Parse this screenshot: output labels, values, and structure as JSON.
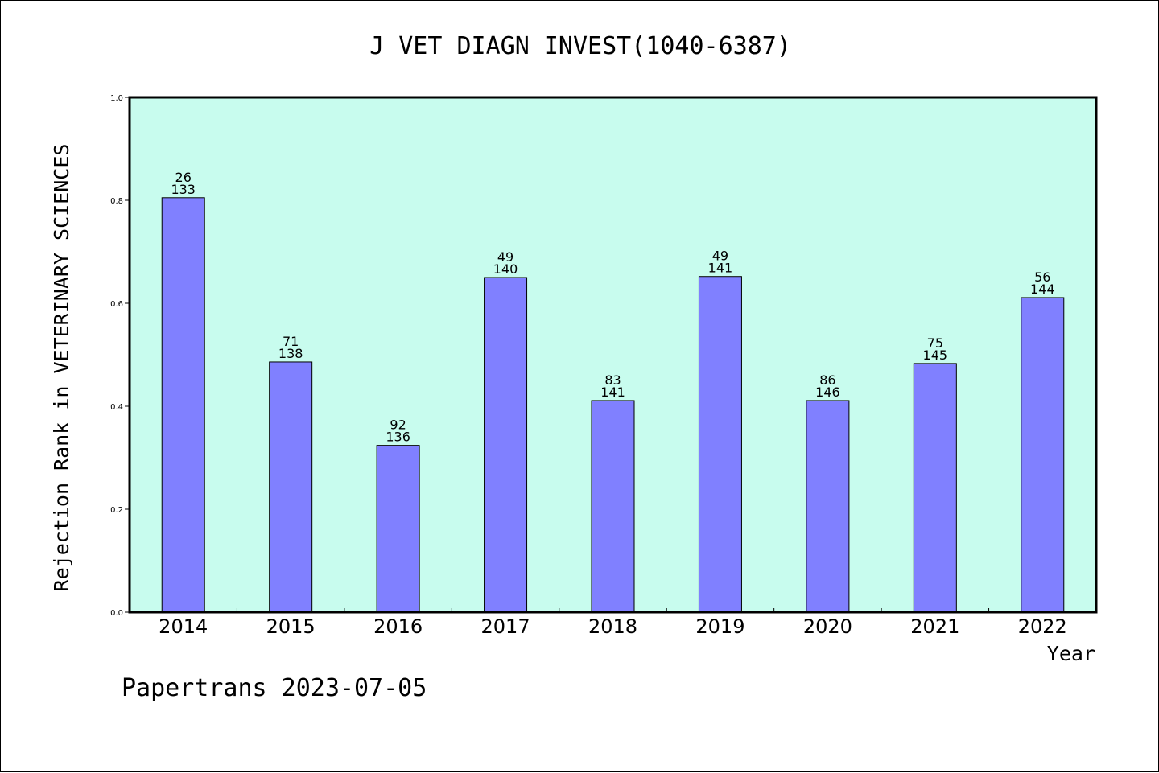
{
  "chart_data": {
    "type": "bar",
    "title": "J VET DIAGN INVEST(1040-6387)",
    "xlabel": "Year",
    "ylabel": "Rejection Rank in VETERINARY SCIENCES",
    "categories": [
      "2014",
      "2015",
      "2016",
      "2017",
      "2018",
      "2019",
      "2020",
      "2021",
      "2022"
    ],
    "values": [
      0.805,
      0.486,
      0.324,
      0.65,
      0.411,
      0.652,
      0.411,
      0.483,
      0.611
    ],
    "labels_top": [
      "26",
      "71",
      "92",
      "49",
      "83",
      "49",
      "86",
      "75",
      "56"
    ],
    "labels_bottom": [
      "133",
      "138",
      "136",
      "140",
      "141",
      "141",
      "146",
      "145",
      "144"
    ],
    "ylim": [
      0,
      1.0
    ],
    "yticks": [
      "0.0",
      "0.2",
      "0.4",
      "0.6",
      "0.8",
      "1.0"
    ],
    "grid": false,
    "colors": {
      "plot_background": "#c8fcee",
      "bar_fill": "#8080ff",
      "bar_stroke": "#000000"
    }
  },
  "footer": "Papertrans 2023-07-05"
}
